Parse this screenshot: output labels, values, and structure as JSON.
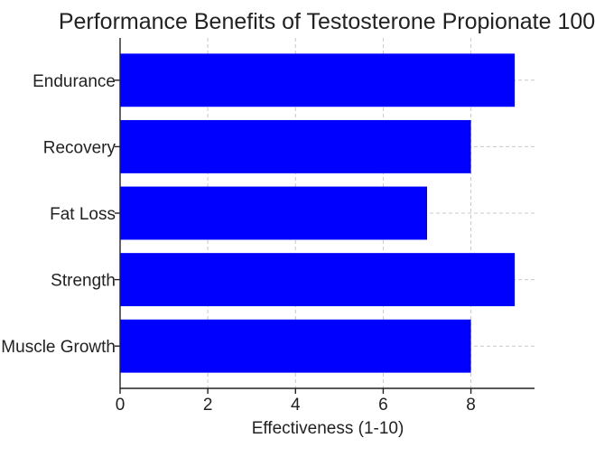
{
  "chart_data": {
    "type": "bar",
    "orientation": "horizontal",
    "title": "Performance Benefits of Testosterone Propionate 100",
    "xlabel": "Effectiveness (1-10)",
    "ylabel": "",
    "categories": [
      "Muscle Growth",
      "Strength",
      "Fat Loss",
      "Recovery",
      "Endurance"
    ],
    "values": [
      8,
      9,
      7,
      8,
      9
    ],
    "xlim": [
      0,
      9.45
    ],
    "xticks": [
      0,
      2,
      4,
      6,
      8
    ],
    "grid": true,
    "bar_color": "#0000ff"
  }
}
